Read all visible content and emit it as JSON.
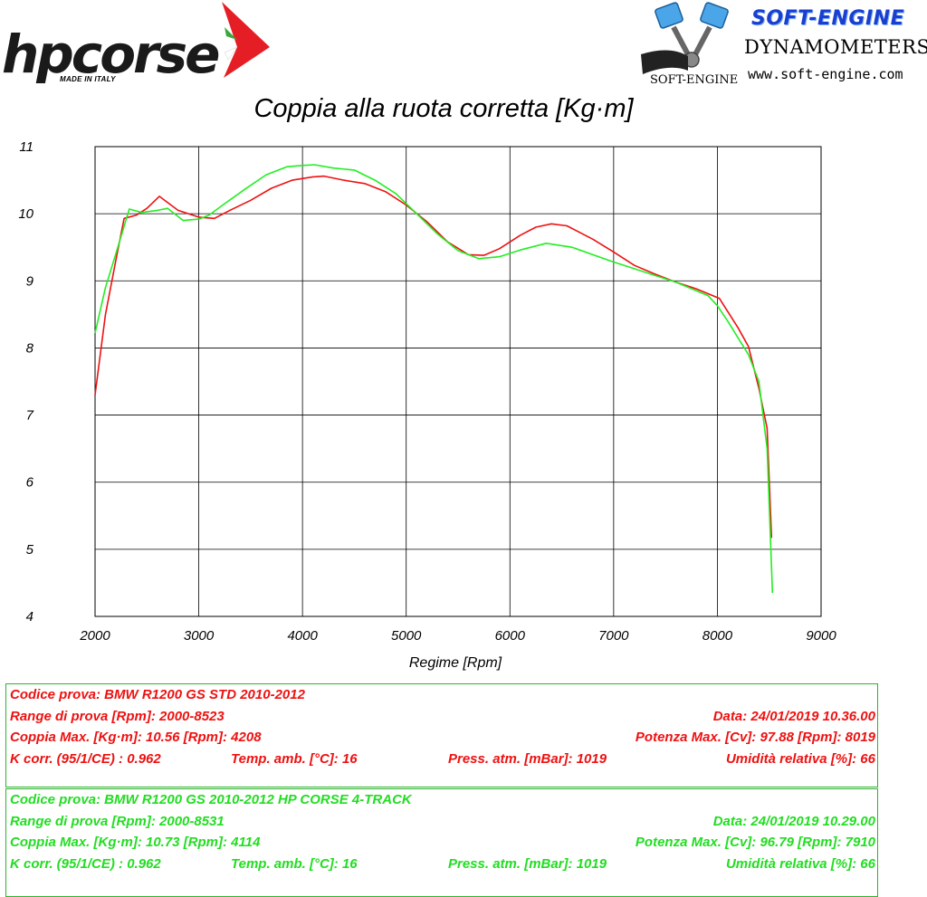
{
  "header": {
    "brand_left_made_in": "MADE IN ITALY",
    "brand_right_title": "SOFT-ENGINE",
    "brand_right_subtitle": "DYNAMOMETERS",
    "brand_right_url": "www.soft-engine.com",
    "brand_right_small_logo_text": "SOFT-ENGINE",
    "colors": {
      "hp_red": "#e51e25",
      "hp_green": "#3aa83a",
      "se_blue": "#1a3fd0"
    },
    "icons": [
      "hpcorse-logo",
      "soft-engine-piston-logo"
    ]
  },
  "chart_data": {
    "type": "line",
    "title": "Coppia alla ruota corretta [Kg·m]",
    "xlabel": "Regime [Rpm]",
    "ylabel": "",
    "xlim": [
      2000,
      9000
    ],
    "ylim": [
      4,
      11
    ],
    "x_ticks": [
      "2000",
      "3000",
      "4000",
      "5000",
      "6000",
      "7000",
      "8000",
      "9000"
    ],
    "y_ticks": [
      "4",
      "5",
      "6",
      "7",
      "8",
      "9",
      "10",
      "11"
    ],
    "grid": true,
    "legend": "none",
    "series": [
      {
        "color": "#ee1111",
        "x": [
          2000,
          2100,
          2200,
          2280,
          2400,
          2500,
          2620,
          2800,
          3000,
          3150,
          3300,
          3500,
          3700,
          3900,
          4100,
          4208,
          4400,
          4600,
          4800,
          5000,
          5200,
          5400,
          5600,
          5750,
          5900,
          6100,
          6250,
          6400,
          6550,
          6800,
          7000,
          7200,
          7400,
          7600,
          7800,
          8019,
          8200,
          8300,
          8400,
          8480,
          8523
        ],
        "values": [
          7.3,
          8.5,
          9.3,
          9.93,
          9.98,
          10.08,
          10.26,
          10.05,
          9.95,
          9.93,
          10.05,
          10.2,
          10.38,
          10.5,
          10.55,
          10.56,
          10.5,
          10.45,
          10.33,
          10.13,
          9.88,
          9.58,
          9.39,
          9.38,
          9.48,
          9.68,
          9.8,
          9.85,
          9.82,
          9.62,
          9.43,
          9.23,
          9.1,
          8.98,
          8.88,
          8.74,
          8.3,
          8.02,
          7.4,
          6.8,
          5.17
        ]
      },
      {
        "color": "#22ee22",
        "x": [
          2000,
          2100,
          2200,
          2330,
          2450,
          2600,
          2700,
          2850,
          3000,
          3100,
          3250,
          3450,
          3650,
          3850,
          4000,
          4114,
          4300,
          4500,
          4700,
          4900,
          5100,
          5300,
          5500,
          5700,
          5900,
          6100,
          6350,
          6600,
          6800,
          7000,
          7200,
          7400,
          7600,
          7800,
          7910,
          8000,
          8100,
          8200,
          8300,
          8400,
          8480,
          8531
        ],
        "values": [
          8.22,
          8.9,
          9.4,
          10.07,
          10.02,
          10.05,
          10.08,
          9.9,
          9.92,
          9.98,
          10.15,
          10.37,
          10.58,
          10.7,
          10.72,
          10.73,
          10.68,
          10.65,
          10.5,
          10.3,
          10.0,
          9.7,
          9.45,
          9.33,
          9.36,
          9.46,
          9.56,
          9.5,
          9.39,
          9.28,
          9.18,
          9.08,
          8.98,
          8.85,
          8.78,
          8.63,
          8.4,
          8.15,
          7.9,
          7.5,
          6.5,
          4.35
        ]
      }
    ]
  },
  "tests": [
    {
      "color": "#ee1111",
      "code": "Codice prova: BMW R1200 GS STD   2010-2012",
      "range": "Range di prova [Rpm]: 2000-8523",
      "date": "Data: 24/01/2019   10.36.00",
      "torque_max": "Coppia Max. [Kg·m]: 10.56   [Rpm]: 4208",
      "power_max": "Potenza Max. [Cv]: 97.88   [Rpm]: 8019",
      "k_corr": "K corr. (95/1/CE) : 0.962",
      "temp": "Temp. amb. [°C]: 16",
      "press": "Press. atm. [mBar]: 1019",
      "humidity": "Umidità relativa [%]: 66"
    },
    {
      "color": "#22dd22",
      "code": "Codice prova: BMW R1200 GS   2010-2012 HP CORSE 4-TRACK",
      "range": "Range di prova [Rpm]: 2000-8531",
      "date": "Data: 24/01/2019   10.29.00",
      "torque_max": "Coppia Max. [Kg·m]: 10.73   [Rpm]: 4114",
      "power_max": "Potenza Max. [Cv]: 96.79   [Rpm]: 7910",
      "k_corr": "K corr. (95/1/CE) : 0.962",
      "temp": "Temp. amb. [°C]: 16",
      "press": "Press. atm. [mBar]: 1019",
      "humidity": "Umidità relativa [%]: 66"
    }
  ]
}
